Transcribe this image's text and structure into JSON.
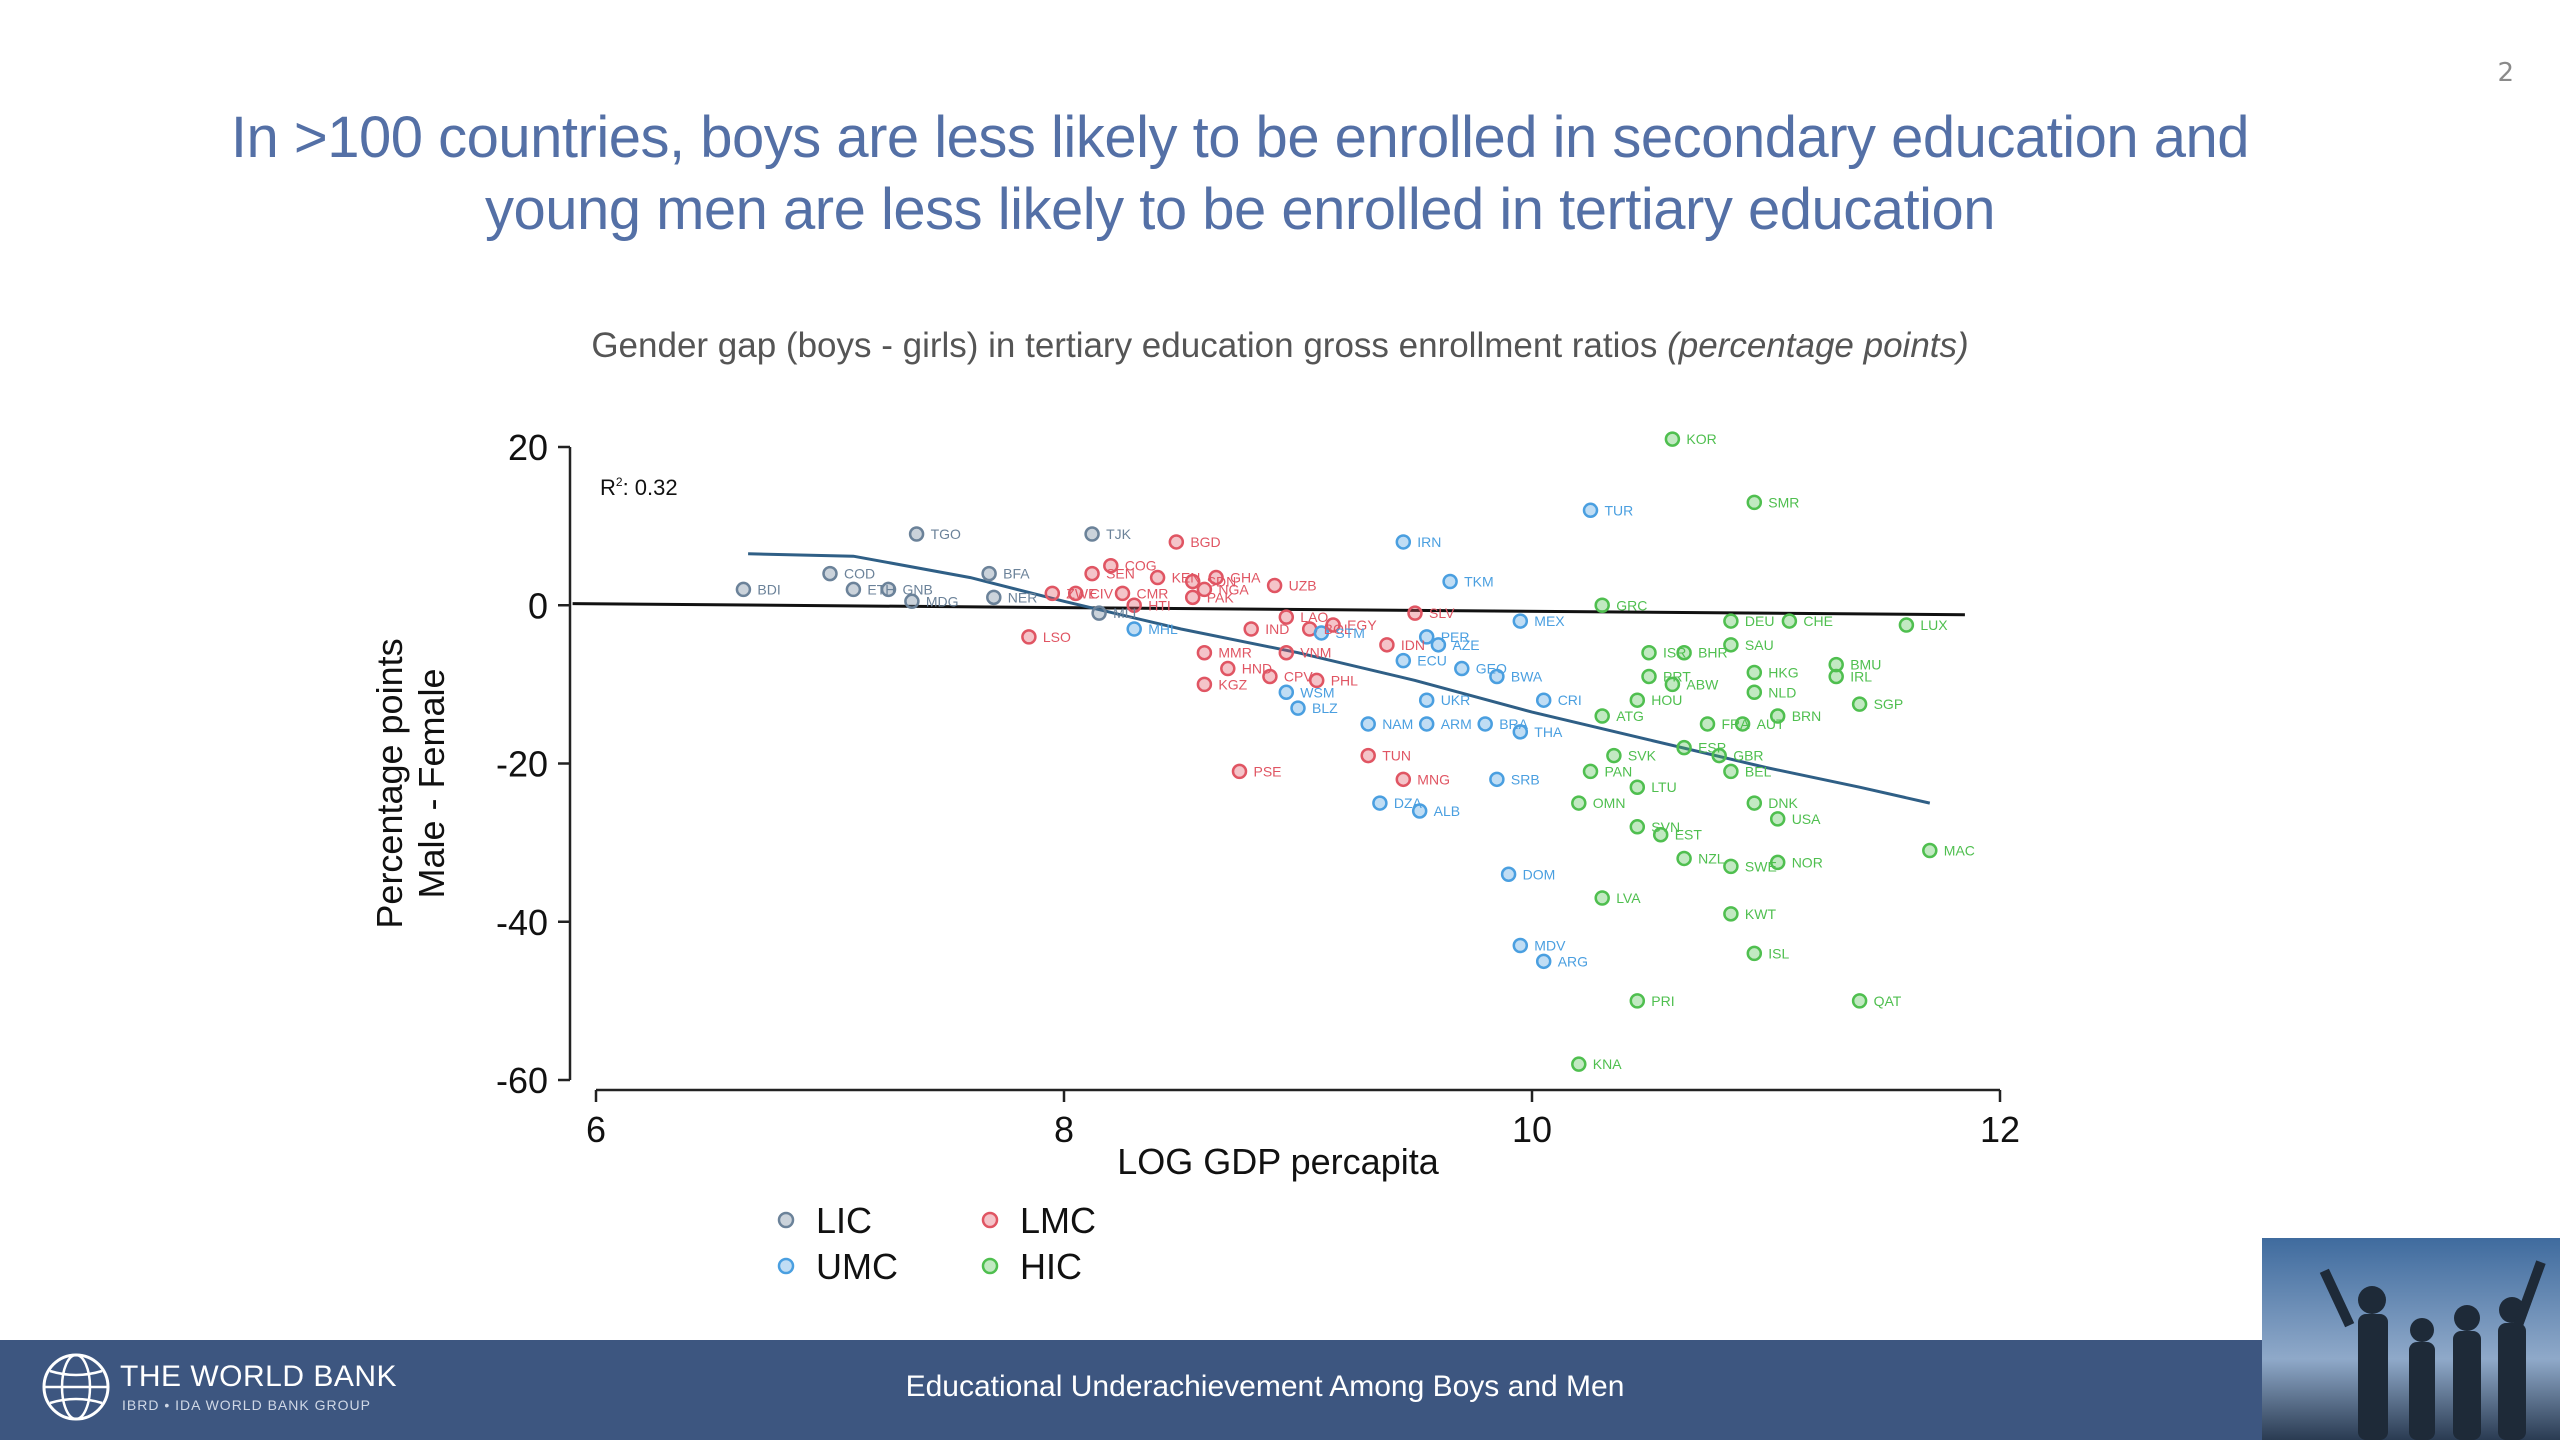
{
  "page_number": "2",
  "title": {
    "line1": "In >100 countries, boys are less likely to be enrolled in secondary education and",
    "line2": "young men are less likely to be enrolled in tertiary education"
  },
  "subtitle": {
    "main": "Gender gap (boys - girls) in tertiary education gross enrollment ratios ",
    "italic": "(percentage points)"
  },
  "footer": {
    "org_name": "THE WORLD BANK",
    "org_sub": "IBRD • IDA  WORLD BANK GROUP",
    "text": "Educational Underachievement Among Boys and Men"
  },
  "colors": {
    "title": "#5470a6",
    "footer_bg": "#3d5680",
    "LIC": "#6b8299",
    "LMC": "#e05563",
    "UMC": "#4a9fe0",
    "HIC": "#4fbf4f",
    "fit_line": "#2f5f86"
  },
  "thumbnail_icon": "people-silhouette-photo",
  "chart_data": {
    "type": "scatter",
    "xlabel": "LOG GDP percapita",
    "ylabel_lines": [
      "Percentage points",
      "Male - Female"
    ],
    "r2_label": "R",
    "r2_sup": "2",
    "r2_value": ": 0.32",
    "xlim": [
      6,
      12
    ],
    "ylim": [
      -60,
      20
    ],
    "xticks": [
      "6",
      "8",
      "10",
      "12"
    ],
    "yticks": [
      "20",
      "0",
      "-20",
      "-40",
      "-60"
    ],
    "grid": false,
    "legend_position": "bottom",
    "legend": [
      {
        "group": "LIC",
        "label": "LIC"
      },
      {
        "group": "LMC",
        "label": "LMC"
      },
      {
        "group": "UMC",
        "label": "UMC"
      },
      {
        "group": "HIC",
        "label": "HIC"
      }
    ],
    "fit_curve": [
      [
        6.65,
        6.5
      ],
      [
        7.1,
        6.2
      ],
      [
        7.6,
        3.5
      ],
      [
        8.0,
        0.5
      ],
      [
        8.5,
        -3.0
      ],
      [
        9.0,
        -6.0
      ],
      [
        9.5,
        -9.5
      ],
      [
        10.0,
        -13.5
      ],
      [
        10.5,
        -17.0
      ],
      [
        11.0,
        -20.5
      ],
      [
        11.4,
        -23.0
      ],
      [
        11.7,
        -25.0
      ]
    ],
    "baseline": [
      [
        5.9,
        0.2
      ],
      [
        11.85,
        -1.2
      ]
    ],
    "points": [
      {
        "code": "BDI",
        "x": 6.63,
        "y": 2,
        "g": "LIC"
      },
      {
        "code": "COD",
        "x": 7.0,
        "y": 4,
        "g": "LIC"
      },
      {
        "code": "TGO",
        "x": 7.37,
        "y": 9,
        "g": "LIC"
      },
      {
        "code": "ETH",
        "x": 7.1,
        "y": 2,
        "g": "LIC"
      },
      {
        "code": "GNB",
        "x": 7.25,
        "y": 2,
        "g": "LIC"
      },
      {
        "code": "MDG",
        "x": 7.35,
        "y": 0.5,
        "g": "LIC"
      },
      {
        "code": "BFA",
        "x": 7.68,
        "y": 4,
        "g": "LIC"
      },
      {
        "code": "NER",
        "x": 7.7,
        "y": 1,
        "g": "LIC"
      },
      {
        "code": "TJK",
        "x": 8.12,
        "y": 9,
        "g": "LIC"
      },
      {
        "code": "MLI",
        "x": 8.15,
        "y": -1,
        "g": "LIC"
      },
      {
        "code": "BGD",
        "x": 8.48,
        "y": 8,
        "g": "LMC"
      },
      {
        "code": "COG",
        "x": 8.2,
        "y": 5,
        "g": "LMC"
      },
      {
        "code": "SEN",
        "x": 8.12,
        "y": 4,
        "g": "LMC"
      },
      {
        "code": "KEN",
        "x": 8.4,
        "y": 3.5,
        "g": "LMC"
      },
      {
        "code": "GHA",
        "x": 8.65,
        "y": 3.5,
        "g": "LMC"
      },
      {
        "code": "SDN",
        "x": 8.55,
        "y": 3,
        "g": "LMC"
      },
      {
        "code": "UZB",
        "x": 8.9,
        "y": 2.5,
        "g": "LMC"
      },
      {
        "code": "NGA",
        "x": 8.6,
        "y": 2,
        "g": "LMC"
      },
      {
        "code": "CMR",
        "x": 8.25,
        "y": 1.5,
        "g": "LMC"
      },
      {
        "code": "CIV",
        "x": 8.05,
        "y": 1.5,
        "g": "LMC"
      },
      {
        "code": "ZWE",
        "x": 7.95,
        "y": 1.5,
        "g": "LMC"
      },
      {
        "code": "PAK",
        "x": 8.55,
        "y": 1,
        "g": "LMC"
      },
      {
        "code": "HTI",
        "x": 8.3,
        "y": 0,
        "g": "LMC"
      },
      {
        "code": "LSO",
        "x": 7.85,
        "y": -4,
        "g": "LMC"
      },
      {
        "code": "IND",
        "x": 8.8,
        "y": -3,
        "g": "LMC"
      },
      {
        "code": "LAO",
        "x": 8.95,
        "y": -1.5,
        "g": "LMC"
      },
      {
        "code": "EGY",
        "x": 9.15,
        "y": -2.5,
        "g": "LMC"
      },
      {
        "code": "BOL",
        "x": 9.05,
        "y": -3,
        "g": "LMC"
      },
      {
        "code": "STM",
        "x": 9.1,
        "y": -3.5,
        "g": "UMC"
      },
      {
        "code": "SLV",
        "x": 9.5,
        "y": -1,
        "g": "LMC"
      },
      {
        "code": "IDN",
        "x": 9.38,
        "y": -5,
        "g": "LMC"
      },
      {
        "code": "MMR",
        "x": 8.6,
        "y": -6,
        "g": "LMC"
      },
      {
        "code": "HND",
        "x": 8.7,
        "y": -8,
        "g": "LMC"
      },
      {
        "code": "VNM",
        "x": 8.95,
        "y": -6,
        "g": "LMC"
      },
      {
        "code": "KGZ",
        "x": 8.6,
        "y": -10,
        "g": "LMC"
      },
      {
        "code": "CPV",
        "x": 8.88,
        "y": -9,
        "g": "LMC"
      },
      {
        "code": "PHL",
        "x": 9.08,
        "y": -9.5,
        "g": "LMC"
      },
      {
        "code": "TUN",
        "x": 9.3,
        "y": -19,
        "g": "LMC"
      },
      {
        "code": "PSE",
        "x": 8.75,
        "y": -21,
        "g": "LMC"
      },
      {
        "code": "MNG",
        "x": 9.45,
        "y": -22,
        "g": "LMC"
      },
      {
        "code": "MHL",
        "x": 8.3,
        "y": -3,
        "g": "UMC"
      },
      {
        "code": "WSM",
        "x": 8.95,
        "y": -11,
        "g": "UMC"
      },
      {
        "code": "BLZ",
        "x": 9.0,
        "y": -13,
        "g": "UMC"
      },
      {
        "code": "NAM",
        "x": 9.3,
        "y": -15,
        "g": "UMC"
      },
      {
        "code": "IRN",
        "x": 9.45,
        "y": 8,
        "g": "UMC"
      },
      {
        "code": "TKM",
        "x": 9.65,
        "y": 3,
        "g": "UMC"
      },
      {
        "code": "TUR",
        "x": 10.25,
        "y": 12,
        "g": "UMC"
      },
      {
        "code": "MEX",
        "x": 9.95,
        "y": -2,
        "g": "UMC"
      },
      {
        "code": "PER",
        "x": 9.55,
        "y": -4,
        "g": "UMC"
      },
      {
        "code": "AZE",
        "x": 9.6,
        "y": -5,
        "g": "UMC"
      },
      {
        "code": "ECU",
        "x": 9.45,
        "y": -7,
        "g": "UMC"
      },
      {
        "code": "GEO",
        "x": 9.7,
        "y": -8,
        "g": "UMC"
      },
      {
        "code": "BWA",
        "x": 9.85,
        "y": -9,
        "g": "UMC"
      },
      {
        "code": "UKR",
        "x": 9.55,
        "y": -12,
        "g": "UMC"
      },
      {
        "code": "CRI",
        "x": 10.05,
        "y": -12,
        "g": "UMC"
      },
      {
        "code": "ARM",
        "x": 9.55,
        "y": -15,
        "g": "UMC"
      },
      {
        "code": "BRA",
        "x": 9.8,
        "y": -15,
        "g": "UMC"
      },
      {
        "code": "THA",
        "x": 9.95,
        "y": -16,
        "g": "UMC"
      },
      {
        "code": "SRB",
        "x": 9.85,
        "y": -22,
        "g": "UMC"
      },
      {
        "code": "DZA",
        "x": 9.35,
        "y": -25,
        "g": "UMC"
      },
      {
        "code": "ALB",
        "x": 9.52,
        "y": -26,
        "g": "UMC"
      },
      {
        "code": "DOM",
        "x": 9.9,
        "y": -34,
        "g": "UMC"
      },
      {
        "code": "MDV",
        "x": 9.95,
        "y": -43,
        "g": "UMC"
      },
      {
        "code": "ARG",
        "x": 10.05,
        "y": -45,
        "g": "UMC"
      },
      {
        "code": "KOR",
        "x": 10.6,
        "y": 21,
        "g": "HIC"
      },
      {
        "code": "SMR",
        "x": 10.95,
        "y": 13,
        "g": "HIC"
      },
      {
        "code": "GRC",
        "x": 10.3,
        "y": 0,
        "g": "HIC"
      },
      {
        "code": "DEU",
        "x": 10.85,
        "y": -2,
        "g": "HIC"
      },
      {
        "code": "CHE",
        "x": 11.1,
        "y": -2,
        "g": "HIC"
      },
      {
        "code": "LUX",
        "x": 11.6,
        "y": -2.5,
        "g": "HIC"
      },
      {
        "code": "SAU",
        "x": 10.85,
        "y": -5,
        "g": "HIC"
      },
      {
        "code": "ISR",
        "x": 10.5,
        "y": -6,
        "g": "HIC"
      },
      {
        "code": "BHR",
        "x": 10.65,
        "y": -6,
        "g": "HIC"
      },
      {
        "code": "BMU",
        "x": 11.3,
        "y": -7.5,
        "g": "HIC"
      },
      {
        "code": "HKG",
        "x": 10.95,
        "y": -8.5,
        "g": "HIC"
      },
      {
        "code": "IRL",
        "x": 11.3,
        "y": -9,
        "g": "HIC"
      },
      {
        "code": "PRT",
        "x": 10.5,
        "y": -9,
        "g": "HIC"
      },
      {
        "code": "ABW",
        "x": 10.6,
        "y": -10,
        "g": "HIC"
      },
      {
        "code": "NLD",
        "x": 10.95,
        "y": -11,
        "g": "HIC"
      },
      {
        "code": "SGP",
        "x": 11.4,
        "y": -12.5,
        "g": "HIC"
      },
      {
        "code": "HOU",
        "x": 10.45,
        "y": -12,
        "g": "HIC"
      },
      {
        "code": "BRN",
        "x": 11.05,
        "y": -14,
        "g": "HIC"
      },
      {
        "code": "ATG",
        "x": 10.3,
        "y": -14,
        "g": "HIC"
      },
      {
        "code": "FRA",
        "x": 10.75,
        "y": -15,
        "g": "HIC"
      },
      {
        "code": "AUT",
        "x": 10.9,
        "y": -15,
        "g": "HIC"
      },
      {
        "code": "SVK",
        "x": 10.35,
        "y": -19,
        "g": "HIC"
      },
      {
        "code": "ESP",
        "x": 10.65,
        "y": -18,
        "g": "HIC"
      },
      {
        "code": "GBR",
        "x": 10.8,
        "y": -19,
        "g": "HIC"
      },
      {
        "code": "BEL",
        "x": 10.85,
        "y": -21,
        "g": "HIC"
      },
      {
        "code": "PAN",
        "x": 10.25,
        "y": -21,
        "g": "HIC"
      },
      {
        "code": "LTU",
        "x": 10.45,
        "y": -23,
        "g": "HIC"
      },
      {
        "code": "OMN",
        "x": 10.2,
        "y": -25,
        "g": "HIC"
      },
      {
        "code": "DNK",
        "x": 10.95,
        "y": -25,
        "g": "HIC"
      },
      {
        "code": "USA",
        "x": 11.05,
        "y": -27,
        "g": "HIC"
      },
      {
        "code": "SVN",
        "x": 10.45,
        "y": -28,
        "g": "HIC"
      },
      {
        "code": "EST",
        "x": 10.55,
        "y": -29,
        "g": "HIC"
      },
      {
        "code": "MAC",
        "x": 11.7,
        "y": -31,
        "g": "HIC"
      },
      {
        "code": "NZL",
        "x": 10.65,
        "y": -32,
        "g": "HIC"
      },
      {
        "code": "NOR",
        "x": 11.05,
        "y": -32.5,
        "g": "HIC"
      },
      {
        "code": "SWE",
        "x": 10.85,
        "y": -33,
        "g": "HIC"
      },
      {
        "code": "LVA",
        "x": 10.3,
        "y": -37,
        "g": "HIC"
      },
      {
        "code": "KWT",
        "x": 10.85,
        "y": -39,
        "g": "HIC"
      },
      {
        "code": "ISL",
        "x": 10.95,
        "y": -44,
        "g": "HIC"
      },
      {
        "code": "PRI",
        "x": 10.45,
        "y": -50,
        "g": "HIC"
      },
      {
        "code": "QAT",
        "x": 11.4,
        "y": -50,
        "g": "HIC"
      },
      {
        "code": "KNA",
        "x": 10.2,
        "y": -58,
        "g": "HIC"
      }
    ]
  }
}
